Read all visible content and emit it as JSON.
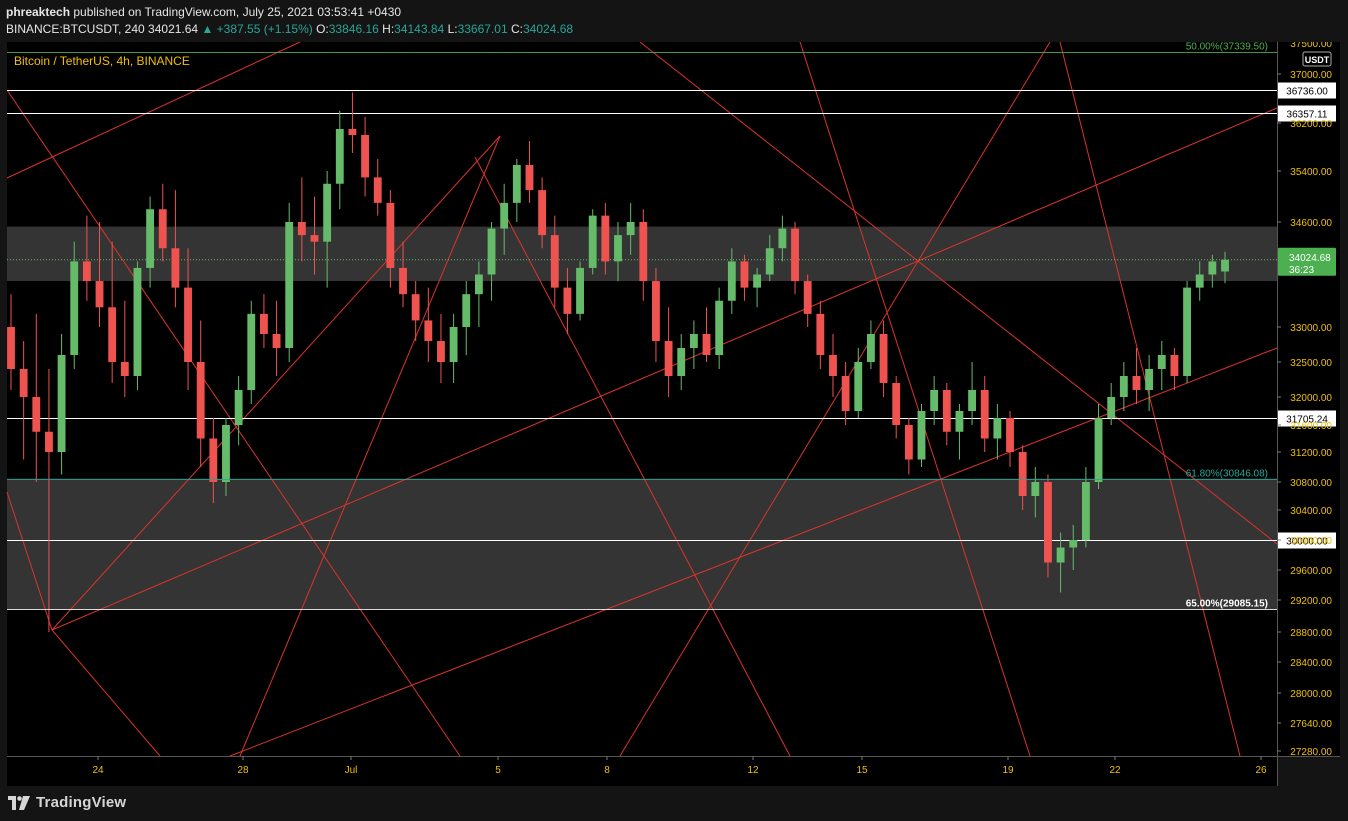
{
  "header": {
    "publisher": "phreaktech",
    "published_text": "published on TradingView.com, July 25, 2021 03:53:41 +0430",
    "symbol": "BINANCE:BTCUSDT, 240",
    "last": "34021.64",
    "change": "▲ +387.55 (+1.15%)",
    "o_label": "O:",
    "o_value": "33846.16",
    "h_label": "H:",
    "h_value": "34143.84",
    "l_label": "L:",
    "l_value": "33667.01",
    "c_label": "C:",
    "c_value": "34024.68"
  },
  "legend_title": "Bitcoin / TetherUS, 4h, BINANCE",
  "currency_badge": "USDT",
  "footer": {
    "logo_text": "TradingView"
  },
  "colors": {
    "up": "#66bb6a",
    "down": "#ef5350",
    "fib_green": "#4caf50",
    "fib_teal": "#26a69a",
    "line_red": "#d9342b",
    "zone": "#3a3a3a",
    "axis_text": "#f0c000",
    "price_badge": "#4caf50"
  },
  "chart_data": {
    "type": "candlestick",
    "yaxis_ticks": [
      "37000.00",
      "36200.00",
      "35400.00",
      "34600.00",
      "33000.00",
      "32500.00",
      "32000.00",
      "31600.00",
      "31200.00",
      "30800.00",
      "30400.00",
      "30000.00",
      "29600.00",
      "29200.00",
      "28800.00",
      "28400.00",
      "28000.00",
      "27640.00",
      "27280.00"
    ],
    "yaxis_top_partial": "37500.00",
    "xaxis_ticks": [
      "24",
      "28",
      "Jul",
      "5",
      "8",
      "12",
      "15",
      "19",
      "22",
      "26"
    ],
    "horizontal_levels": [
      {
        "price": 36736.0,
        "label": "36736.00"
      },
      {
        "price": 36357.11,
        "label": "36357.11"
      },
      {
        "price": 31705.24,
        "label": "31705.24"
      },
      {
        "price": 30000.0,
        "label": "30000.00"
      }
    ],
    "fib_levels": [
      {
        "label": "50.00%(37339.50)",
        "price": 37339.5
      },
      {
        "label": "61.80%(30846.08)",
        "price": 30846.08
      },
      {
        "label": "65.00%(29085.15)",
        "price": 29085.15
      }
    ],
    "zones": [
      {
        "from": 33700,
        "to": 34530
      },
      {
        "from": 29085.15,
        "to": 30846.08
      }
    ],
    "current_price": {
      "value": "34024.68",
      "countdown": "36:23"
    },
    "candles_ohlc_approx": [
      [
        33000,
        33500,
        32100,
        32400
      ],
      [
        32400,
        32800,
        31100,
        32000
      ],
      [
        32000,
        33200,
        30800,
        31500
      ],
      [
        31500,
        32400,
        28800,
        31200
      ],
      [
        31200,
        32900,
        30900,
        32600
      ],
      [
        32600,
        34300,
        32400,
        34000
      ],
      [
        34000,
        34700,
        33400,
        33700
      ],
      [
        33700,
        34600,
        33000,
        33300
      ],
      [
        33300,
        34300,
        32200,
        32500
      ],
      [
        32500,
        33400,
        32000,
        32300
      ],
      [
        32300,
        34000,
        32100,
        33900
      ],
      [
        33900,
        35000,
        33600,
        34800
      ],
      [
        34800,
        35200,
        34000,
        34200
      ],
      [
        34200,
        35100,
        33300,
        33600
      ],
      [
        33600,
        34200,
        32100,
        32500
      ],
      [
        32500,
        33100,
        31000,
        31400
      ],
      [
        31400,
        31700,
        30500,
        30800
      ],
      [
        30800,
        31700,
        30600,
        31600
      ],
      [
        31600,
        32300,
        31300,
        32100
      ],
      [
        32100,
        33400,
        31900,
        33200
      ],
      [
        33200,
        33500,
        32700,
        32900
      ],
      [
        32900,
        33400,
        32300,
        32700
      ],
      [
        32700,
        34900,
        32500,
        34600
      ],
      [
        34600,
        35300,
        34000,
        34400
      ],
      [
        34400,
        35000,
        33800,
        34300
      ],
      [
        34300,
        35400,
        33600,
        35200
      ],
      [
        35200,
        36400,
        34800,
        36100
      ],
      [
        36100,
        36700,
        35700,
        36000
      ],
      [
        36000,
        36300,
        35000,
        35300
      ],
      [
        35300,
        35600,
        34700,
        34900
      ],
      [
        34900,
        35100,
        33600,
        33900
      ],
      [
        33900,
        34300,
        33300,
        33500
      ],
      [
        33500,
        33700,
        32800,
        33100
      ],
      [
        33100,
        33600,
        32500,
        32800
      ],
      [
        32800,
        33200,
        32200,
        32500
      ],
      [
        32500,
        33200,
        32200,
        33000
      ],
      [
        33000,
        33700,
        32600,
        33500
      ],
      [
        33500,
        34000,
        33000,
        33800
      ],
      [
        33800,
        34600,
        33400,
        34500
      ],
      [
        34500,
        35200,
        34100,
        34900
      ],
      [
        34900,
        35600,
        34600,
        35500
      ],
      [
        35500,
        35900,
        34900,
        35100
      ],
      [
        35100,
        35300,
        34200,
        34400
      ],
      [
        34400,
        34700,
        33300,
        33600
      ],
      [
        33600,
        33900,
        32900,
        33200
      ],
      [
        33200,
        34000,
        33100,
        33900
      ],
      [
        33900,
        34800,
        33800,
        34700
      ],
      [
        34700,
        34900,
        33800,
        34000
      ],
      [
        34000,
        34600,
        33700,
        34400
      ],
      [
        34400,
        34900,
        34100,
        34600
      ],
      [
        34600,
        34800,
        33400,
        33700
      ],
      [
        33700,
        33900,
        32500,
        32800
      ],
      [
        32800,
        33300,
        32000,
        32300
      ],
      [
        32300,
        32900,
        32100,
        32700
      ],
      [
        32700,
        33100,
        32400,
        32900
      ],
      [
        32900,
        33300,
        32500,
        32600
      ],
      [
        32600,
        33600,
        32400,
        33400
      ],
      [
        33400,
        34200,
        33200,
        34000
      ],
      [
        34000,
        34100,
        33400,
        33600
      ],
      [
        33600,
        33900,
        33300,
        33800
      ],
      [
        33800,
        34400,
        33700,
        34200
      ],
      [
        34200,
        34700,
        34000,
        34500
      ],
      [
        34500,
        34600,
        33500,
        33700
      ],
      [
        33700,
        33800,
        33000,
        33200
      ],
      [
        33200,
        33400,
        32400,
        32600
      ],
      [
        32600,
        32900,
        32000,
        32300
      ],
      [
        32300,
        32500,
        31600,
        31800
      ],
      [
        31800,
        32700,
        31700,
        32500
      ],
      [
        32500,
        33100,
        32400,
        32900
      ],
      [
        32900,
        33100,
        32000,
        32200
      ],
      [
        32200,
        32300,
        31400,
        31600
      ],
      [
        31600,
        31700,
        30900,
        31100
      ],
      [
        31100,
        31900,
        31000,
        31800
      ],
      [
        31800,
        32300,
        31600,
        32100
      ],
      [
        32100,
        32200,
        31300,
        31500
      ],
      [
        31500,
        31900,
        31100,
        31800
      ],
      [
        31800,
        32500,
        31600,
        32100
      ],
      [
        32100,
        32300,
        31200,
        31400
      ],
      [
        31400,
        31900,
        31100,
        31700
      ],
      [
        31700,
        31800,
        31000,
        31200
      ],
      [
        31200,
        31300,
        30400,
        30600
      ],
      [
        30600,
        31000,
        30300,
        30800
      ],
      [
        30800,
        30900,
        29500,
        29700
      ],
      [
        29700,
        30100,
        29300,
        29900
      ],
      [
        29900,
        30200,
        29600,
        30000
      ],
      [
        30000,
        31000,
        29900,
        30800
      ],
      [
        30800,
        31900,
        30700,
        31700
      ],
      [
        31700,
        32200,
        31600,
        32000
      ],
      [
        32000,
        32500,
        31800,
        32300
      ],
      [
        32300,
        32700,
        31900,
        32100
      ],
      [
        32100,
        32600,
        31800,
        32400
      ],
      [
        32400,
        32800,
        32100,
        32600
      ],
      [
        32600,
        32700,
        32100,
        32300
      ],
      [
        32300,
        33700,
        32200,
        33600
      ],
      [
        33600,
        34000,
        33400,
        33800
      ],
      [
        33800,
        34100,
        33600,
        34000
      ],
      [
        33846.16,
        34143.84,
        33667.01,
        34024.68
      ]
    ]
  }
}
